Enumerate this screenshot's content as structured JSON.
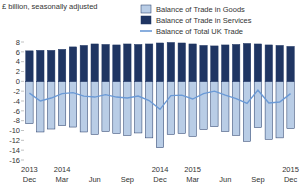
{
  "chart_data": {
    "type": "bar",
    "ylabel": "£ billion, seasonally adjusted",
    "categories": [
      "2013 Dec",
      null,
      null,
      "2014 Mar",
      null,
      null,
      "Jun",
      null,
      null,
      "Sep",
      null,
      null,
      "2014 Dec",
      null,
      null,
      "2015 Mar",
      null,
      null,
      "Jun",
      null,
      null,
      "Sep",
      null,
      null,
      "2015 Dec"
    ],
    "stacked": true,
    "grid": false,
    "legend": "top-right",
    "ylim": [
      -16,
      8
    ],
    "yticks": [
      -16,
      -14,
      -12,
      -10,
      -8,
      -6,
      -4,
      -2,
      0,
      2,
      4,
      6,
      8
    ],
    "series": [
      {
        "name": "Balance of Trade in Goods",
        "type": "bar",
        "color": "#b9cde6",
        "values": [
          -8.6,
          -10.3,
          -9.7,
          -9.0,
          -9.3,
          -10.3,
          -10.8,
          -10.2,
          -10.6,
          -11.0,
          -10.5,
          -11.5,
          -13.5,
          -10.8,
          -10.6,
          -11.2,
          -9.8,
          -9.2,
          -10.2,
          -11.0,
          -12.2,
          -9.4,
          -11.8,
          -11.5,
          -9.6
        ]
      },
      {
        "name": "Balance of Trade in Services",
        "type": "bar",
        "color": "#1f3562",
        "values": [
          6.2,
          6.3,
          6.3,
          6.5,
          7.0,
          7.3,
          7.6,
          7.5,
          7.4,
          7.6,
          7.5,
          7.6,
          7.8,
          7.9,
          7.8,
          7.6,
          7.3,
          7.2,
          7.4,
          7.5,
          7.7,
          7.6,
          7.4,
          7.3,
          7.1
        ]
      },
      {
        "name": "Balance of Total UK Trade",
        "type": "line",
        "color": "#6b9ad6",
        "values": [
          -2.4,
          -4.0,
          -3.4,
          -2.5,
          -2.3,
          -3.0,
          -3.2,
          -2.7,
          -3.2,
          -3.4,
          -3.0,
          -3.9,
          -5.7,
          -2.9,
          -2.8,
          -3.6,
          -2.5,
          -2.0,
          -2.8,
          -3.5,
          -4.5,
          -1.8,
          -4.4,
          -4.2,
          -2.5
        ]
      }
    ]
  }
}
